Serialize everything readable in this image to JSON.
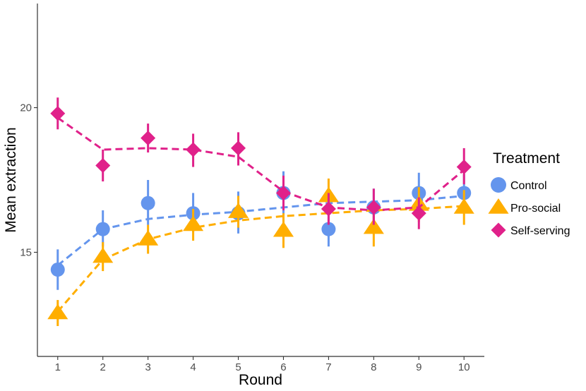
{
  "chart_data": {
    "type": "line",
    "title": "",
    "xlabel": "Round",
    "ylabel": "Mean extraction",
    "x": [
      1,
      2,
      3,
      4,
      5,
      6,
      7,
      8,
      9,
      10
    ],
    "xticks": [
      "1",
      "2",
      "3",
      "4",
      "5",
      "6",
      "7",
      "8",
      "9",
      "10"
    ],
    "yticks": [
      "15",
      "20"
    ],
    "ylim": [
      11.4,
      23.6
    ],
    "grid": false,
    "legend": {
      "title": "Treatment",
      "position": "right"
    },
    "series": [
      {
        "name": "Control",
        "color": "#6495ED",
        "marker": "circle",
        "values": [
          14.4,
          15.8,
          16.7,
          16.35,
          16.35,
          17.05,
          15.8,
          16.55,
          17.05,
          17.05
        ],
        "error_low": [
          13.7,
          15.2,
          15.95,
          15.7,
          15.65,
          16.3,
          15.2,
          15.95,
          16.35,
          16.4
        ],
        "error_high": [
          15.1,
          16.45,
          17.5,
          17.05,
          17.1,
          17.8,
          16.4,
          17.2,
          17.75,
          17.7
        ],
        "fitted": [
          14.55,
          15.8,
          16.15,
          16.3,
          16.4,
          16.55,
          16.7,
          16.75,
          16.8,
          16.95
        ]
      },
      {
        "name": "Pro-social",
        "color": "#FFAE00",
        "marker": "triangle",
        "values": [
          12.9,
          14.85,
          15.45,
          15.95,
          16.4,
          15.75,
          16.95,
          15.85,
          16.65,
          16.55
        ],
        "error_low": [
          12.45,
          14.35,
          14.95,
          15.4,
          15.85,
          15.15,
          16.35,
          15.2,
          16.05,
          15.95
        ],
        "error_high": [
          13.35,
          15.35,
          15.95,
          16.5,
          16.95,
          16.35,
          17.55,
          16.5,
          17.25,
          17.15
        ],
        "fitted": [
          12.95,
          14.75,
          15.45,
          15.85,
          16.1,
          16.25,
          16.35,
          16.45,
          16.5,
          16.6
        ]
      },
      {
        "name": "Self-serving",
        "color": "#E0218A",
        "marker": "diamond",
        "values": [
          19.8,
          18.0,
          18.95,
          18.55,
          18.6,
          17.05,
          16.5,
          16.55,
          16.35,
          17.95
        ],
        "error_low": [
          19.25,
          17.45,
          18.45,
          17.95,
          18.0,
          16.45,
          15.95,
          15.95,
          15.8,
          17.35
        ],
        "error_high": [
          20.35,
          18.55,
          19.45,
          19.1,
          19.15,
          17.65,
          17.05,
          17.2,
          16.9,
          18.6
        ],
        "fitted": [
          19.65,
          18.55,
          18.6,
          18.55,
          18.3,
          17.1,
          16.55,
          16.45,
          16.55,
          17.85
        ]
      }
    ]
  }
}
